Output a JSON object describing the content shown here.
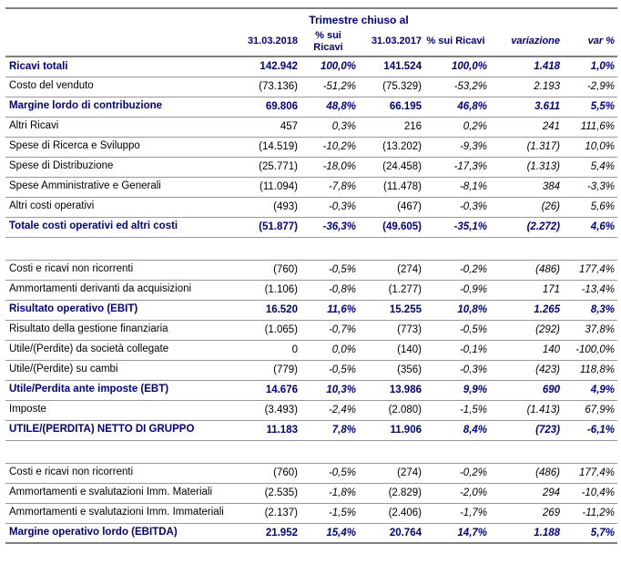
{
  "table": {
    "title": "Trimestre chiuso al",
    "columns": [
      "31.03.2018",
      "% sui Ricavi",
      "31.03.2017",
      "% sui Ricavi",
      "variazione",
      "var %"
    ],
    "rows": [
      {
        "label": "Ricavi totali",
        "bold": true,
        "values": [
          "142.942",
          "100,0%",
          "141.524",
          "100,0%",
          "1.418",
          "1,0%"
        ]
      },
      {
        "label": "Costo del venduto",
        "bold": false,
        "values": [
          "(73.136)",
          "-51,2%",
          "(75.329)",
          "-53,2%",
          "2.193",
          "-2,9%"
        ]
      },
      {
        "label": "Margine lordo di contribuzione",
        "bold": true,
        "values": [
          "69.806",
          "48,8%",
          "66.195",
          "46,8%",
          "3.611",
          "5,5%"
        ]
      },
      {
        "label": "Altri Ricavi",
        "bold": false,
        "values": [
          "457",
          "0,3%",
          "216",
          "0,2%",
          "241",
          "111,6%"
        ]
      },
      {
        "label": "Spese di Ricerca e Sviluppo",
        "bold": false,
        "values": [
          "(14.519)",
          "-10,2%",
          "(13.202)",
          "-9,3%",
          "(1.317)",
          "10,0%"
        ]
      },
      {
        "label": "Spese di Distribuzione",
        "bold": false,
        "values": [
          "(25.771)",
          "-18,0%",
          "(24.458)",
          "-17,3%",
          "(1.313)",
          "5,4%"
        ]
      },
      {
        "label": "Spese Amministrative e Generali",
        "bold": false,
        "values": [
          "(11.094)",
          "-7,8%",
          "(11.478)",
          "-8,1%",
          "384",
          "-3,3%"
        ]
      },
      {
        "label": "Altri costi operativi",
        "bold": false,
        "values": [
          "(493)",
          "-0,3%",
          "(467)",
          "-0,3%",
          "(26)",
          "5,6%"
        ]
      },
      {
        "label": "Totale costi operativi ed altri costi",
        "bold": true,
        "values": [
          "(51.877)",
          "-36,3%",
          "(49.605)",
          "-35,1%",
          "(2.272)",
          "4,6%"
        ]
      },
      {
        "spacer": true
      },
      {
        "label": "Costi e ricavi non ricorrenti",
        "bold": false,
        "values": [
          "(760)",
          "-0,5%",
          "(274)",
          "-0,2%",
          "(486)",
          "177,4%"
        ]
      },
      {
        "label": "Ammortamenti derivanti da acquisizioni",
        "bold": false,
        "values": [
          "(1.106)",
          "-0,8%",
          "(1.277)",
          "-0,9%",
          "171",
          "-13,4%"
        ]
      },
      {
        "label": "Risultato operativo (EBIT)",
        "bold": true,
        "values": [
          "16.520",
          "11,6%",
          "15.255",
          "10,8%",
          "1.265",
          "8,3%"
        ]
      },
      {
        "label": "Risultato della gestione finanziaria",
        "bold": false,
        "values": [
          "(1.065)",
          "-0,7%",
          "(773)",
          "-0,5%",
          "(292)",
          "37,8%"
        ]
      },
      {
        "label": "Utile/(Perdite) da società collegate",
        "bold": false,
        "values": [
          "0",
          "0,0%",
          "(140)",
          "-0,1%",
          "140",
          "-100,0%"
        ]
      },
      {
        "label": "Utile/(Perdite) su cambi",
        "bold": false,
        "values": [
          "(779)",
          "-0,5%",
          "(356)",
          "-0,3%",
          "(423)",
          "118,8%"
        ]
      },
      {
        "label": "Utile/Perdita ante imposte (EBT)",
        "bold": true,
        "values": [
          "14.676",
          "10,3%",
          "13.986",
          "9,9%",
          "690",
          "4,9%"
        ]
      },
      {
        "label": "Imposte",
        "bold": false,
        "values": [
          "(3.493)",
          "-2,4%",
          "(2.080)",
          "-1,5%",
          "(1.413)",
          "67,9%"
        ]
      },
      {
        "label": "UTILE/(PERDITA) NETTO DI GRUPPO",
        "bold": true,
        "values": [
          "11.183",
          "7,8%",
          "11.906",
          "8,4%",
          "(723)",
          "-6,1%"
        ]
      },
      {
        "spacer": true
      },
      {
        "label": "Costi e ricavi non ricorrenti",
        "bold": false,
        "values": [
          "(760)",
          "-0,5%",
          "(274)",
          "-0,2%",
          "(486)",
          "177,4%"
        ]
      },
      {
        "label": "Ammortamenti e svalutazioni Imm. Materiali",
        "bold": false,
        "values": [
          "(2.535)",
          "-1,8%",
          "(2.829)",
          "-2,0%",
          "294",
          "-10,4%"
        ]
      },
      {
        "label": "Ammortamenti e svalutazioni Imm. Immateriali",
        "bold": false,
        "values": [
          "(2.137)",
          "-1,5%",
          "(2.406)",
          "-1,7%",
          "269",
          "-11,2%"
        ]
      },
      {
        "label": "Margine operativo lordo (EBITDA)",
        "bold": true,
        "values": [
          "21.952",
          "15,4%",
          "20.764",
          "14,7%",
          "1.188",
          "5,7%"
        ]
      }
    ]
  },
  "colors": {
    "accent_navy": "#00008B",
    "text_black": "#000000",
    "heavy_line_gray": "#7f7f7f",
    "row_line_gray": "#999999"
  }
}
